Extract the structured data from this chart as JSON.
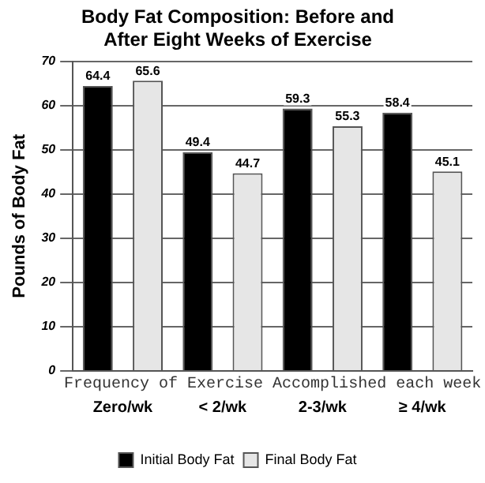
{
  "chart_data": {
    "type": "bar",
    "title": "Body Fat Composition: Before and After Eight Weeks of Exercise",
    "xlabel": "Frequency of Exercise Accomplished each week",
    "ylabel": "Pounds of Body Fat",
    "categories": [
      "Zero/wk",
      "< 2/wk",
      "2-3/wk",
      "≥ 4/wk"
    ],
    "series": [
      {
        "name": "Initial Body Fat",
        "color": "#000000",
        "values": [
          64.4,
          49.4,
          59.3,
          58.4
        ]
      },
      {
        "name": "Final Body Fat",
        "color": "#e6e6e6",
        "values": [
          65.6,
          44.7,
          55.3,
          45.1
        ]
      }
    ],
    "ylim": [
      0,
      70
    ],
    "yticks": [
      0,
      10,
      20,
      30,
      40,
      50,
      60,
      70
    ],
    "grid": "y",
    "legend": "bottom",
    "data_labels": true
  }
}
